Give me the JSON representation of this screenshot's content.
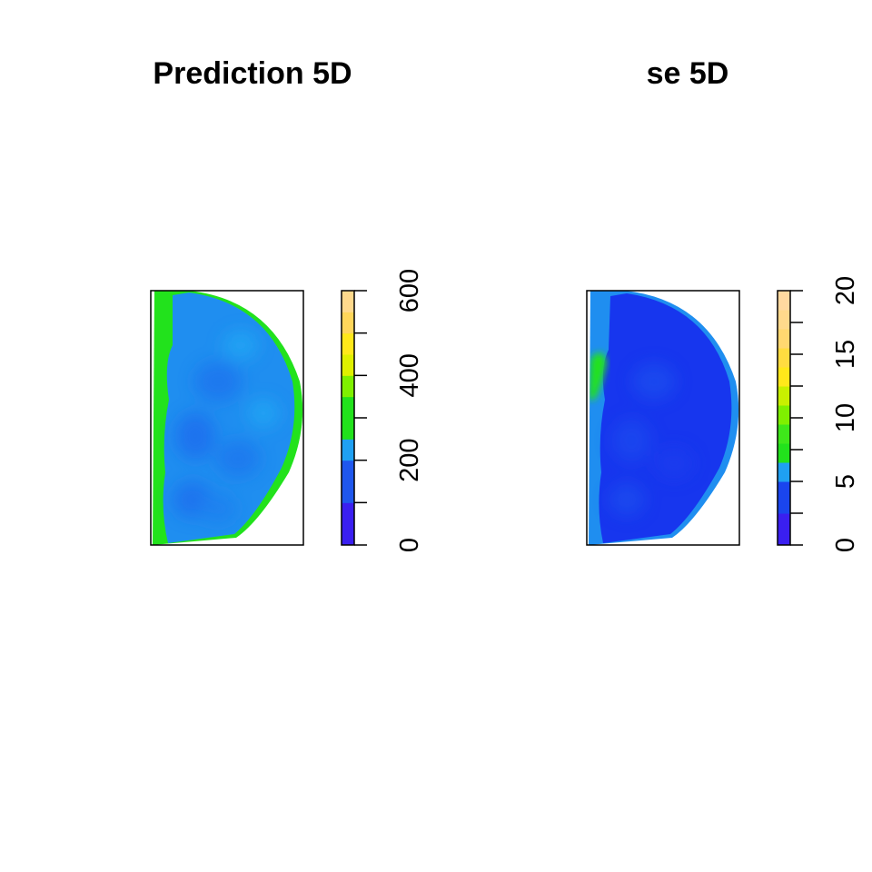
{
  "chart_data": [
    {
      "type": "heatmap",
      "title": "Prediction 5D",
      "legend": {
        "ticks": [
          0,
          100,
          200,
          300,
          400,
          500,
          600
        ],
        "tick_labels": [
          "0",
          "200",
          "400",
          "600"
        ],
        "range": [
          0,
          600
        ],
        "breaks": [
          0,
          100,
          200,
          250,
          300,
          350,
          400,
          450,
          500,
          550,
          600
        ],
        "colors": [
          "#3a1ff0",
          "#1f57ee",
          "#1fa0f2",
          "#22e21c",
          "#22e21c",
          "#7ff000",
          "#dff000",
          "#ffe81a",
          "#ffd65a",
          "#ffd98c"
        ]
      },
      "field": {
        "shape": "half-disc, flat edge on left",
        "background_value": 160,
        "background_color": "#1f8ef0",
        "edge_value": 230,
        "edge_color": "#22e21c"
      }
    },
    {
      "type": "heatmap",
      "title": "se 5D",
      "legend": {
        "ticks": [
          0,
          2.5,
          5,
          7.5,
          10,
          12.5,
          15,
          17.5,
          20
        ],
        "tick_labels": [
          "0",
          "5",
          "10",
          "15",
          "20"
        ],
        "range": [
          0,
          20
        ],
        "breaks": [
          0,
          2.5,
          5,
          6.5,
          8,
          9.5,
          11,
          12.5,
          14,
          15.5,
          17,
          18.5,
          20
        ],
        "colors": [
          "#3a1ff0",
          "#1a45ee",
          "#1fa0f2",
          "#22e21c",
          "#3ee81a",
          "#7ff000",
          "#c8f000",
          "#ffe81a",
          "#ffdc40",
          "#ffd870",
          "#ffd98c",
          "#ffd9a0"
        ]
      },
      "field": {
        "shape": "half-disc, flat edge on left",
        "background_value": 3.5,
        "background_color": "#1736ee",
        "edge_value": 7,
        "edge_color": "#22e21c"
      }
    }
  ]
}
